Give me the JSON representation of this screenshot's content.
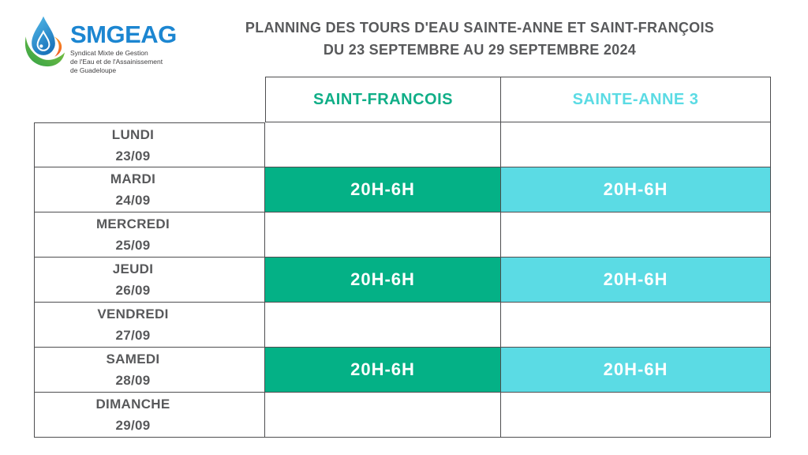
{
  "logo": {
    "name": "SMGEAG",
    "subtitle_lines": [
      "Syndicat Mixte de Gestion",
      "de l'Eau et de l'Assainissement",
      "de Guadeloupe"
    ],
    "icon": "water-drop-leaf-logo"
  },
  "title": {
    "line1": "PLANNING DES TOURS D'EAU SAINTE-ANNE ET SAINT-FRANÇOIS",
    "line2": "DU 23 SEPTEMBRE AU 29 SEPTEMBRE 2024"
  },
  "table": {
    "columns": [
      {
        "key": "saint_francois",
        "label": "SAINT-FRANCOIS",
        "header_color": "#10AE87",
        "cell_color": "#04B186"
      },
      {
        "key": "sainte_anne_3",
        "label": "SAINTE-ANNE 3",
        "header_color": "#5BDBE4",
        "cell_color": "#5BDBE4"
      }
    ],
    "rows": [
      {
        "day": "LUNDI",
        "date": "23/09",
        "saint_francois": "",
        "sainte_anne_3": ""
      },
      {
        "day": "MARDI",
        "date": "24/09",
        "saint_francois": "20H-6H",
        "sainte_anne_3": "20H-6H"
      },
      {
        "day": "MERCREDI",
        "date": "25/09",
        "saint_francois": "",
        "sainte_anne_3": ""
      },
      {
        "day": "JEUDI",
        "date": "26/09",
        "saint_francois": "20H-6H",
        "sainte_anne_3": "20H-6H"
      },
      {
        "day": "VENDREDI",
        "date": "27/09",
        "saint_francois": "",
        "sainte_anne_3": ""
      },
      {
        "day": "SAMEDI",
        "date": "28/09",
        "saint_francois": "20H-6H",
        "sainte_anne_3": "20H-6H"
      },
      {
        "day": "DIMANCHE",
        "date": "29/09",
        "saint_francois": "",
        "sainte_anne_3": ""
      }
    ]
  },
  "colors": {
    "saint_francois_green": "#04B186",
    "sainte_anne_cyan": "#5BDBE4",
    "text_gray": "#58595B",
    "border_gray": "#4E4E50",
    "logo_blue": "#1C86D1",
    "slot_text_white": "#FFFFFF"
  }
}
